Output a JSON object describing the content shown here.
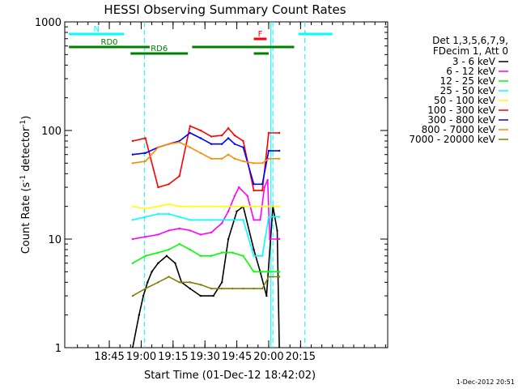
{
  "chart_data": {
    "type": "line",
    "title": "HESSI Observing Summary Count Rates",
    "xlabel": "Start Time (01-Dec-12 18:42:02)",
    "ylabel_parts": [
      "Count Rate (s",
      "-1",
      " detector",
      "-1",
      ")"
    ],
    "ylog": true,
    "xlim_min": [
      -17.967,
      134.0
    ],
    "ylim": [
      1,
      1000
    ],
    "x_ticks": [
      {
        "min": 3,
        "label": "18:45"
      },
      {
        "min": 18,
        "label": "19:00"
      },
      {
        "min": 33,
        "label": "19:15"
      },
      {
        "min": 48,
        "label": "19:30"
      },
      {
        "min": 63,
        "label": "19:45"
      },
      {
        "min": 78,
        "label": "20:00"
      },
      {
        "min": 93,
        "label": "20:15"
      }
    ],
    "y_ticks": [
      {
        "value": 1,
        "label": "1"
      },
      {
        "value": 10,
        "label": "10"
      },
      {
        "value": 100,
        "label": "100"
      },
      {
        "value": 1000,
        "label": "1000"
      }
    ],
    "legend_title": [
      "Det 1,3,5,6,7,9,",
      "FDecim 1, Att 0"
    ],
    "legend_placement": "right",
    "data_gaps_min": [
      [
        0,
        13.5
      ],
      [
        26,
        27
      ],
      [
        41,
        42
      ],
      [
        62,
        63
      ],
      [
        71,
        72
      ],
      [
        77.5,
        78.5
      ],
      [
        83,
        134
      ]
    ],
    "series": [
      {
        "name": "3 - 6 keV",
        "color": "#000000",
        "points": [
          [
            14,
            1
          ],
          [
            17,
            2
          ],
          [
            19,
            3
          ],
          [
            21,
            4
          ],
          [
            23,
            5
          ],
          [
            26,
            6
          ],
          [
            30,
            7
          ],
          [
            34,
            6
          ],
          [
            37,
            4
          ],
          [
            41,
            3.5
          ],
          [
            46,
            3
          ],
          [
            52,
            3
          ],
          [
            56,
            4
          ],
          [
            59,
            10
          ],
          [
            63,
            18
          ],
          [
            66,
            20
          ],
          [
            71,
            8
          ],
          [
            74,
            5
          ],
          [
            77,
            3
          ],
          [
            80,
            20
          ],
          [
            82,
            12
          ],
          [
            83,
            1
          ]
        ]
      },
      {
        "name": "6 - 12 keV",
        "color": "#ff00ff",
        "points": [
          [
            14,
            10
          ],
          [
            20,
            10.5
          ],
          [
            26,
            11
          ],
          [
            31,
            12
          ],
          [
            36,
            12.5
          ],
          [
            41,
            12
          ],
          [
            46,
            11
          ],
          [
            51,
            11.5
          ],
          [
            56,
            14
          ],
          [
            59,
            18
          ],
          [
            62,
            25
          ],
          [
            64,
            30
          ],
          [
            68,
            25
          ],
          [
            71,
            15
          ],
          [
            74,
            15
          ],
          [
            76,
            30
          ],
          [
            77.5,
            35
          ],
          [
            78.5,
            10
          ],
          [
            83,
            10
          ]
        ]
      },
      {
        "name": "12 - 25 keV",
        "color": "#00ff00",
        "points": [
          [
            14,
            6
          ],
          [
            20,
            7
          ],
          [
            26,
            7.5
          ],
          [
            31,
            8
          ],
          [
            36,
            9
          ],
          [
            41,
            8
          ],
          [
            46,
            7
          ],
          [
            51,
            7
          ],
          [
            56,
            7.5
          ],
          [
            61,
            7.5
          ],
          [
            66,
            7
          ],
          [
            71,
            5
          ],
          [
            75,
            5
          ],
          [
            78,
            5
          ],
          [
            83,
            5
          ]
        ]
      },
      {
        "name": "25 - 50 keV",
        "color": "#00ffff",
        "points": [
          [
            14,
            15
          ],
          [
            20,
            16
          ],
          [
            26,
            17
          ],
          [
            31,
            17
          ],
          [
            36,
            16
          ],
          [
            41,
            15
          ],
          [
            46,
            15
          ],
          [
            51,
            15
          ],
          [
            56,
            15
          ],
          [
            61,
            15
          ],
          [
            66,
            15
          ],
          [
            71,
            7
          ],
          [
            75,
            7
          ],
          [
            78,
            16
          ],
          [
            83,
            16
          ]
        ]
      },
      {
        "name": "50 - 100 keV",
        "color": "#ffff00",
        "points": [
          [
            14,
            20
          ],
          [
            20,
            19
          ],
          [
            26,
            20
          ],
          [
            31,
            21
          ],
          [
            36,
            20
          ],
          [
            41,
            20
          ],
          [
            46,
            20
          ],
          [
            51,
            20
          ],
          [
            56,
            20
          ],
          [
            61,
            20
          ],
          [
            66,
            20
          ],
          [
            71,
            20
          ],
          [
            75,
            20
          ],
          [
            78,
            20
          ],
          [
            83,
            20
          ]
        ]
      },
      {
        "name": "100 - 300 keV",
        "color": "#ff0000",
        "points": [
          [
            14,
            80
          ],
          [
            20,
            85
          ],
          [
            26,
            30
          ],
          [
            31,
            32
          ],
          [
            36,
            38
          ],
          [
            41,
            110
          ],
          [
            46,
            100
          ],
          [
            51,
            88
          ],
          [
            56,
            90
          ],
          [
            59,
            105
          ],
          [
            62,
            90
          ],
          [
            66,
            80
          ],
          [
            71,
            28
          ],
          [
            75,
            28
          ],
          [
            78,
            95
          ],
          [
            83,
            95
          ]
        ]
      },
      {
        "name": "300 - 800 keV",
        "color": "#0000ff",
        "points": [
          [
            14,
            60
          ],
          [
            20,
            62
          ],
          [
            26,
            70
          ],
          [
            31,
            75
          ],
          [
            36,
            80
          ],
          [
            41,
            95
          ],
          [
            46,
            85
          ],
          [
            51,
            75
          ],
          [
            56,
            75
          ],
          [
            59,
            85
          ],
          [
            62,
            75
          ],
          [
            66,
            70
          ],
          [
            71,
            32
          ],
          [
            75,
            32
          ],
          [
            78,
            65
          ],
          [
            83,
            65
          ]
        ]
      },
      {
        "name": "800 - 7000 keV",
        "color": "#ff8c00",
        "points": [
          [
            14,
            50
          ],
          [
            20,
            52
          ],
          [
            26,
            70
          ],
          [
            31,
            75
          ],
          [
            36,
            78
          ],
          [
            41,
            70
          ],
          [
            46,
            62
          ],
          [
            51,
            55
          ],
          [
            56,
            55
          ],
          [
            59,
            60
          ],
          [
            62,
            55
          ],
          [
            66,
            52
          ],
          [
            71,
            50
          ],
          [
            75,
            50
          ],
          [
            78,
            55
          ],
          [
            83,
            55
          ]
        ]
      },
      {
        "name": "7000 - 20000 keV",
        "color": "#808000",
        "points": [
          [
            14,
            3
          ],
          [
            20,
            3.5
          ],
          [
            26,
            4
          ],
          [
            31,
            4.5
          ],
          [
            36,
            4
          ],
          [
            41,
            4
          ],
          [
            46,
            3.8
          ],
          [
            51,
            3.5
          ],
          [
            56,
            3.5
          ],
          [
            61,
            3.5
          ],
          [
            66,
            3.5
          ],
          [
            71,
            3.5
          ],
          [
            75,
            3.5
          ],
          [
            78,
            4.5
          ],
          [
            83,
            4.5
          ]
        ]
      }
    ],
    "state_bars": [
      {
        "label": "N",
        "color": "#00ffff",
        "level": "top",
        "segments": [
          [
            -16,
            10
          ],
          [
            92,
            108
          ]
        ]
      },
      {
        "label": "F",
        "color": "#ff0000",
        "level": "mid-high",
        "segments": [
          [
            71,
            77
          ]
        ]
      },
      {
        "label": "RD0",
        "color": "#008000",
        "level": "mid",
        "segments": [
          [
            -16,
            22
          ],
          [
            42,
            90
          ]
        ]
      },
      {
        "label": "RD6",
        "color": "#008000",
        "level": "low",
        "segments": [
          [
            13,
            40
          ],
          [
            71,
            78
          ]
        ]
      }
    ],
    "vertical_markers_min": [
      {
        "min": 19.5,
        "color": "#00ffff",
        "dash": true
      },
      {
        "min": 79,
        "color": "#00ffff",
        "dash": false
      },
      {
        "min": 80,
        "color": "#00ffff",
        "dash": true
      },
      {
        "min": 95,
        "color": "#00ffff",
        "dash": true
      }
    ]
  },
  "footer": {
    "timestamp": "1-Dec-2012 20:51"
  }
}
